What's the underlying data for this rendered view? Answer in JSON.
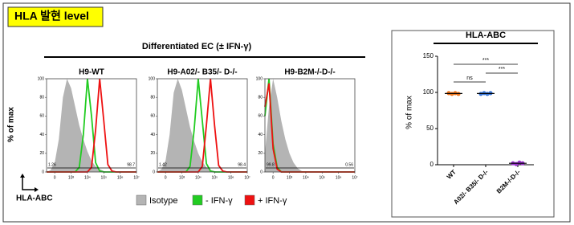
{
  "header": {
    "title": "HLA 발현 level"
  },
  "figure_title": "Differentiated EC (± IFN-γ)",
  "x_label": "HLA-ABC",
  "y_label": "% of max",
  "legend": {
    "names": [
      "Isotype",
      "- IFN-γ",
      "+ IFN-γ"
    ]
  },
  "chart_data": [
    {
      "type": "line",
      "title": "H9-WT",
      "xlim": [
        1.5,
        7
      ],
      "ylim": [
        0,
        100
      ],
      "xticks": [
        {
          "value": 2,
          "label": "0"
        },
        {
          "value": 3,
          "label": "10³"
        },
        {
          "value": 4,
          "label": "10⁴"
        },
        {
          "value": 5,
          "label": "10⁵"
        },
        {
          "value": 6,
          "label": "10⁶"
        },
        {
          "value": 7,
          "label": "10⁷"
        }
      ],
      "yticks": [
        0,
        20,
        40,
        60,
        80,
        100
      ],
      "x": [
        1.5,
        1.75,
        2,
        2.25,
        2.5,
        2.75,
        3,
        3.25,
        3.5,
        3.75,
        4,
        4.25,
        4.5,
        4.75,
        5,
        5.25,
        5.5,
        5.75,
        6,
        6.25,
        6.5,
        6.75,
        7
      ],
      "series": [
        {
          "color": "#b4b4b4",
          "fill": true,
          "values": [
            0,
            2,
            10,
            35,
            80,
            100,
            90,
            70,
            50,
            35,
            22,
            12,
            6,
            3,
            1,
            0,
            0,
            0,
            0,
            0,
            0,
            0,
            0
          ]
        },
        {
          "color": "#22cc22",
          "fill": false,
          "values": [
            0,
            0,
            0,
            0,
            0,
            0,
            0,
            0,
            5,
            40,
            100,
            60,
            10,
            1,
            0,
            0,
            0,
            0,
            0,
            0,
            0,
            0,
            0
          ]
        },
        {
          "color": "#ee1111",
          "fill": false,
          "values": [
            0,
            0,
            0,
            0,
            0,
            0,
            0,
            0,
            0,
            0,
            0,
            5,
            45,
            100,
            55,
            8,
            1,
            0,
            0,
            0,
            0,
            0,
            0
          ]
        }
      ],
      "gate_left": 1.26,
      "gate_right": 98.7
    },
    {
      "type": "line",
      "title": "H9-A02/- B35/- D-/-",
      "xlim": [
        1.5,
        7
      ],
      "ylim": [
        0,
        100
      ],
      "xticks": [
        {
          "value": 2,
          "label": "0"
        },
        {
          "value": 3,
          "label": "10³"
        },
        {
          "value": 4,
          "label": "10⁴"
        },
        {
          "value": 5,
          "label": "10⁵"
        },
        {
          "value": 6,
          "label": "10⁶"
        },
        {
          "value": 7,
          "label": "10⁷"
        }
      ],
      "yticks": [
        0,
        20,
        40,
        60,
        80,
        100
      ],
      "x": [
        1.5,
        1.75,
        2,
        2.25,
        2.5,
        2.75,
        3,
        3.25,
        3.5,
        3.75,
        4,
        4.25,
        4.5,
        4.75,
        5,
        5.25,
        5.5,
        5.75,
        6,
        6.25,
        6.5,
        6.75,
        7
      ],
      "series": [
        {
          "color": "#b4b4b4",
          "fill": true,
          "values": [
            0,
            3,
            12,
            40,
            85,
            100,
            88,
            68,
            48,
            33,
            20,
            11,
            5,
            2,
            1,
            0,
            0,
            0,
            0,
            0,
            0,
            0,
            0
          ]
        },
        {
          "color": "#22cc22",
          "fill": false,
          "values": [
            0,
            0,
            0,
            0,
            0,
            0,
            0,
            0,
            6,
            45,
            100,
            55,
            9,
            1,
            0,
            0,
            0,
            0,
            0,
            0,
            0,
            0,
            0
          ]
        },
        {
          "color": "#ee1111",
          "fill": false,
          "values": [
            0,
            0,
            0,
            0,
            0,
            0,
            0,
            0,
            0,
            0,
            0,
            6,
            50,
            100,
            50,
            7,
            1,
            0,
            0,
            0,
            0,
            0,
            0
          ]
        }
      ],
      "gate_left": 1.42,
      "gate_right": 98.4
    },
    {
      "type": "line",
      "title": "H9-B2M-/-D-/-",
      "xlim": [
        1.5,
        7
      ],
      "ylim": [
        0,
        100
      ],
      "xticks": [
        {
          "value": 2,
          "label": "0"
        },
        {
          "value": 3,
          "label": "10³"
        },
        {
          "value": 4,
          "label": "10⁴"
        },
        {
          "value": 5,
          "label": "10⁵"
        },
        {
          "value": 6,
          "label": "10⁶"
        },
        {
          "value": 7,
          "label": "10⁷"
        }
      ],
      "yticks": [
        0,
        20,
        40,
        60,
        80,
        100
      ],
      "x": [
        1.5,
        1.75,
        2,
        2.25,
        2.5,
        2.75,
        3,
        3.25,
        3.5,
        3.75,
        4,
        4.25,
        4.5,
        4.75,
        5,
        5.25,
        5.5,
        5.75,
        6,
        6.25,
        6.5,
        6.75,
        7
      ],
      "series": [
        {
          "color": "#b4b4b4",
          "fill": true,
          "values": [
            20,
            70,
            100,
            80,
            55,
            35,
            20,
            10,
            4,
            1,
            0,
            0,
            0,
            0,
            0,
            0,
            0,
            0,
            0,
            0,
            0,
            0,
            0
          ]
        },
        {
          "color": "#22cc22",
          "fill": false,
          "values": [
            60,
            100,
            30,
            5,
            0,
            0,
            0,
            0,
            0,
            0,
            0,
            0,
            0,
            0,
            0,
            0,
            0,
            0,
            0,
            0,
            0,
            0,
            0
          ]
        },
        {
          "color": "#ee1111",
          "fill": false,
          "values": [
            70,
            95,
            25,
            3,
            0,
            0,
            0,
            0,
            0,
            0,
            0,
            0,
            0,
            0,
            0,
            0,
            0,
            0,
            0,
            0,
            0,
            0,
            0
          ]
        }
      ],
      "gate_left": 99.8,
      "gate_right": 0.56
    },
    {
      "type": "dot",
      "title": "HLA-ABC",
      "y_label": "% of max",
      "categories": [
        "WT",
        "A02/- B35/- D-/-",
        "B2M-/-D-/-"
      ],
      "colors": [
        "#f07820",
        "#3c78d8",
        "#9933cc"
      ],
      "points": [
        [
          99,
          98,
          99,
          98
        ],
        [
          98,
          99,
          98,
          99
        ],
        [
          2,
          1,
          3,
          2
        ]
      ],
      "means": [
        98.5,
        98.5,
        2
      ],
      "ylim": [
        0,
        150
      ],
      "yticks": [
        0,
        50,
        100,
        150
      ],
      "significance": [
        "***",
        "ns",
        "***"
      ]
    }
  ]
}
